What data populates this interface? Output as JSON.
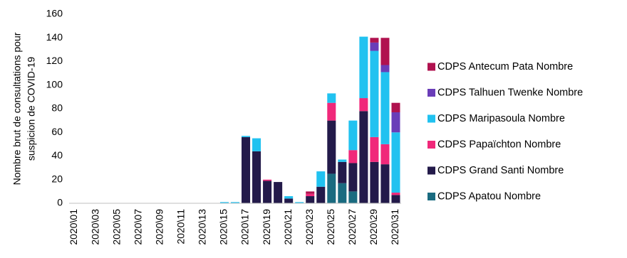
{
  "chart_data": {
    "type": "bar",
    "stacked": true,
    "title": "",
    "xlabel": "",
    "ylabel_lines": [
      "Nombre brut de consultations pour",
      "suspicion de COVID-19"
    ],
    "ylim": [
      0,
      160
    ],
    "yticks": [
      0,
      20,
      40,
      60,
      80,
      100,
      120,
      140,
      160
    ],
    "grid": false,
    "legend_position": "right",
    "categories": [
      "2020\\01",
      "2020\\02",
      "2020\\03",
      "2020\\04",
      "2020\\05",
      "2020\\06",
      "2020\\07",
      "2020\\08",
      "2020\\09",
      "2020\\10",
      "2020\\11",
      "2020\\12",
      "2020\\13",
      "2020\\14",
      "2020\\15",
      "2020\\16",
      "2020\\17",
      "2020\\18",
      "2020\\19",
      "2020\\20",
      "2020\\21",
      "2020\\22",
      "2020\\23",
      "2020\\24",
      "2020\\25",
      "2020\\26",
      "2020\\27",
      "2020\\28",
      "2020\\29",
      "2020\\30",
      "2020\\31"
    ],
    "visible_tick_labels": [
      "2020\\01",
      "2020\\03",
      "2020\\05",
      "2020\\07",
      "2020\\09",
      "2020\\11",
      "2020\\13",
      "2020\\15",
      "2020\\17",
      "2020\\19",
      "2020\\21",
      "2020\\23",
      "2020\\25",
      "2020\\27",
      "2020\\29",
      "2020\\31"
    ],
    "series": [
      {
        "name": "CDPS Apatou Nombre",
        "color": "#1a6b80",
        "values": [
          0,
          0,
          0,
          0,
          0,
          0,
          0,
          0,
          0,
          0,
          0,
          0,
          0,
          0,
          0,
          0,
          0,
          0,
          0,
          0,
          0,
          0,
          0,
          0,
          25,
          17,
          10,
          0,
          0,
          0,
          0
        ]
      },
      {
        "name": "CDPS Grand Santi Nombre",
        "color": "#231a4a",
        "values": [
          0,
          0,
          0,
          0,
          0,
          0,
          0,
          0,
          0,
          0,
          0,
          0,
          0,
          0,
          0,
          0,
          56,
          44,
          19,
          18,
          4,
          0,
          6,
          14,
          45,
          18,
          24,
          78,
          35,
          33,
          7
        ]
      },
      {
        "name": "CDPS Papaïchton Nombre",
        "color": "#f0287a",
        "values": [
          0,
          0,
          0,
          0,
          0,
          0,
          0,
          0,
          0,
          0,
          0,
          0,
          0,
          0,
          0,
          0,
          0,
          0,
          1,
          0,
          0,
          0,
          2,
          0,
          15,
          0,
          11,
          11,
          21,
          17,
          2
        ]
      },
      {
        "name": "CDPS Maripasoula Nombre",
        "color": "#21c2f0",
        "values": [
          0,
          0,
          0,
          0,
          0,
          0,
          0,
          0,
          0,
          0,
          0,
          0,
          0,
          0,
          1,
          1,
          1,
          11,
          0,
          0,
          2,
          1,
          0,
          13,
          8,
          2,
          25,
          52,
          73,
          61,
          51
        ]
      },
      {
        "name": "CDPS Talhuen Twenke Nombre",
        "color": "#6a3db8",
        "values": [
          0,
          0,
          0,
          0,
          0,
          0,
          0,
          0,
          0,
          0,
          0,
          0,
          0,
          0,
          0,
          0,
          0,
          0,
          0,
          0,
          0,
          0,
          0,
          0,
          0,
          0,
          0,
          0,
          7,
          6,
          17
        ]
      },
      {
        "name": "CDPS Antecum Pata Nombre",
        "color": "#b0124f",
        "values": [
          0,
          0,
          0,
          0,
          0,
          0,
          0,
          0,
          0,
          0,
          0,
          0,
          0,
          0,
          0,
          0,
          0,
          0,
          0,
          0,
          0,
          0,
          2,
          0,
          0,
          0,
          0,
          0,
          4,
          23,
          8
        ]
      }
    ]
  }
}
